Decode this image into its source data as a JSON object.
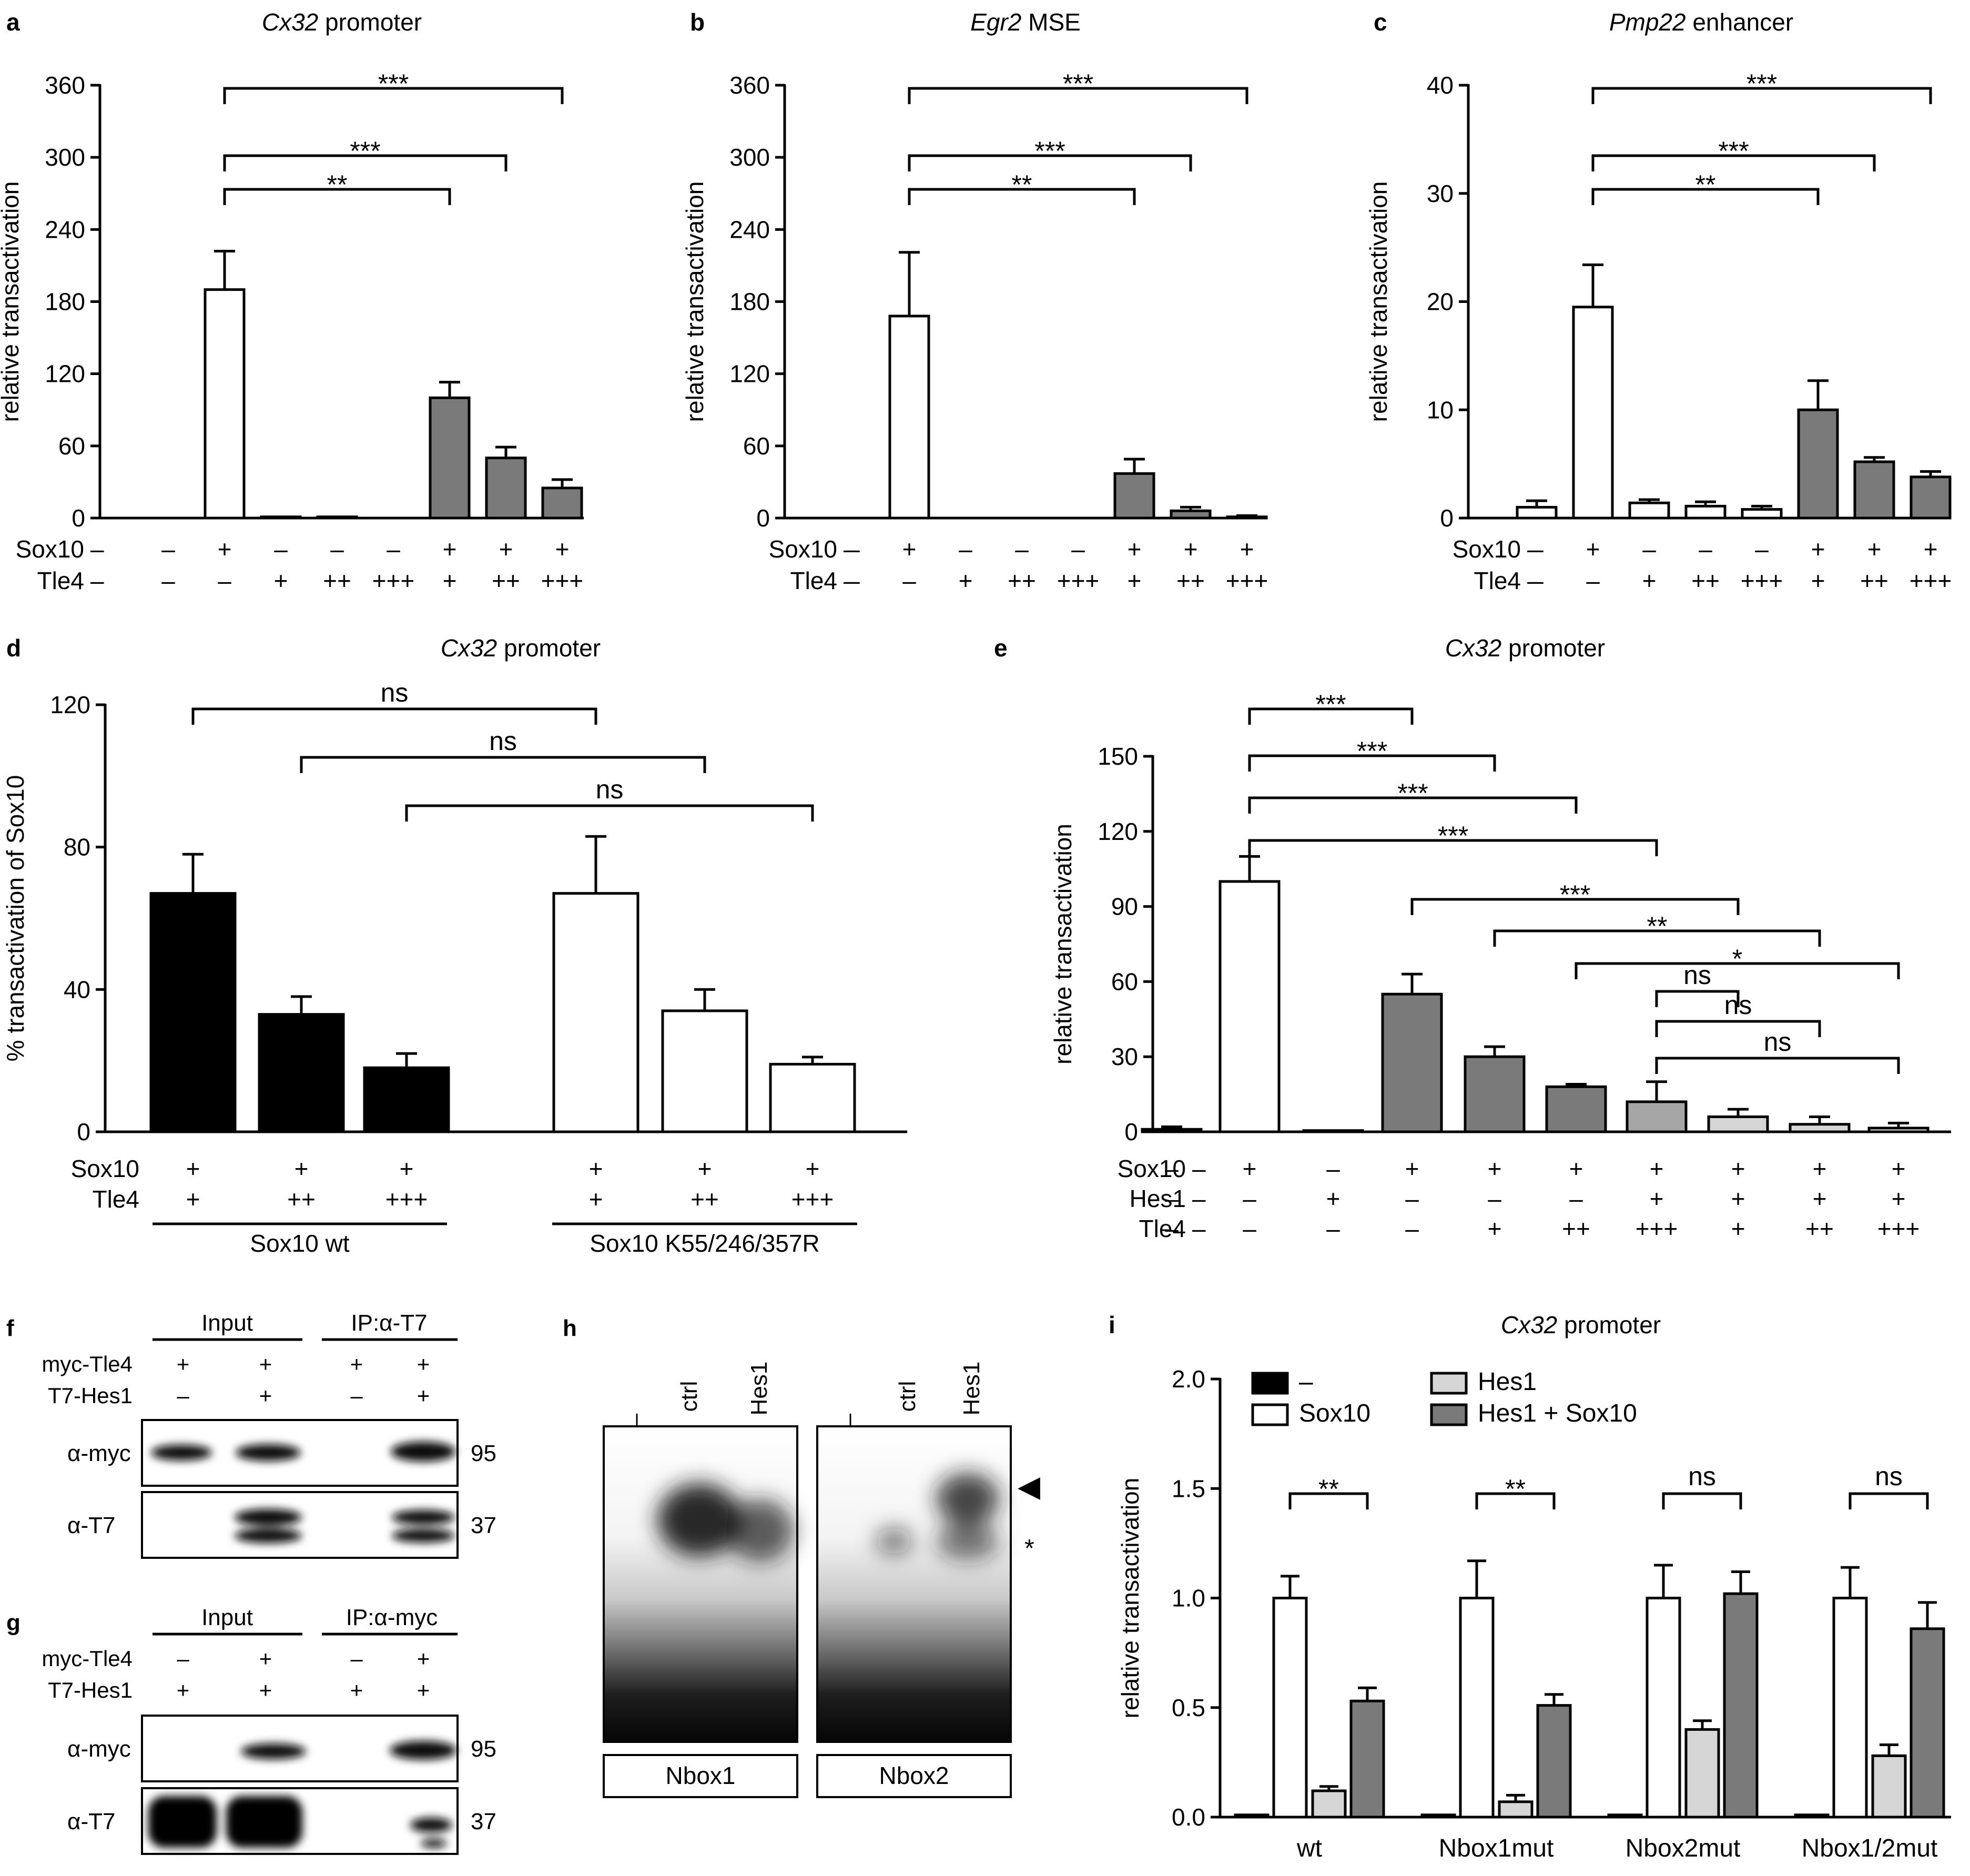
{
  "colors": {
    "white": "#ffffff",
    "dark": "#7a7a7a",
    "light": "#d6d6d6",
    "black": "#000000",
    "medium": "#a6a6a6"
  },
  "chart_data": [
    {
      "id": "a",
      "type": "bar",
      "panel_letter": "a",
      "title": "Cx32",
      "title_suffix": " promoter",
      "ylabel": "relative transactivation",
      "ylim": [
        0,
        360
      ],
      "yticks": [
        0,
        60,
        120,
        180,
        240,
        300,
        360
      ],
      "row_labels": [
        "Sox10",
        "Tle4"
      ],
      "dash": "–",
      "rows": [
        [
          "–",
          "+",
          "–",
          "–",
          "–",
          "+",
          "+",
          "+"
        ],
        [
          "–",
          "–",
          "+",
          "++",
          "+++",
          "+",
          "++",
          "+++"
        ]
      ],
      "values": [
        0,
        190,
        1,
        1,
        0,
        100,
        50,
        25
      ],
      "errors": [
        0,
        32,
        0,
        0,
        0,
        13,
        9,
        7
      ],
      "fills": [
        "white",
        "white",
        "white",
        "white",
        "white",
        "dark",
        "dark",
        "dark"
      ],
      "brackets": [
        {
          "from": 1,
          "to": 5,
          "label": "**"
        },
        {
          "from": 1,
          "to": 6,
          "label": "***"
        },
        {
          "from": 1,
          "to": 7,
          "label": "***"
        }
      ]
    },
    {
      "id": "b",
      "type": "bar",
      "panel_letter": "b",
      "title": "Egr2",
      "title_suffix": " MSE",
      "ylabel": "relative transactivation",
      "ylim": [
        0,
        360
      ],
      "yticks": [
        0,
        60,
        120,
        180,
        240,
        300,
        360
      ],
      "row_labels": [
        "Sox10",
        "Tle4"
      ],
      "dash": "–",
      "rows": [
        [
          "–",
          "+",
          "–",
          "–",
          "–",
          "+",
          "+",
          "+"
        ],
        [
          "–",
          "–",
          "+",
          "++",
          "+++",
          "+",
          "++",
          "+++"
        ]
      ],
      "values": [
        0,
        168,
        0,
        0,
        0,
        37,
        6,
        1
      ],
      "errors": [
        0,
        53,
        0,
        0,
        0,
        12,
        3,
        1
      ],
      "fills": [
        "white",
        "white",
        "white",
        "white",
        "white",
        "dark",
        "dark",
        "dark"
      ],
      "brackets": [
        {
          "from": 1,
          "to": 5,
          "label": "**"
        },
        {
          "from": 1,
          "to": 6,
          "label": "***"
        },
        {
          "from": 1,
          "to": 7,
          "label": "***"
        }
      ]
    },
    {
      "id": "c",
      "type": "bar",
      "panel_letter": "c",
      "title": "Pmp22",
      "title_suffix": " enhancer",
      "ylabel": "relative transactivation",
      "ylim": [
        0,
        40
      ],
      "yticks": [
        0,
        10,
        20,
        30,
        40
      ],
      "row_labels": [
        "Sox10",
        "Tle4"
      ],
      "dash": "–",
      "rows": [
        [
          "–",
          "+",
          "–",
          "–",
          "–",
          "+",
          "+",
          "+"
        ],
        [
          "–",
          "–",
          "+",
          "++",
          "+++",
          "+",
          "++",
          "+++"
        ]
      ],
      "values": [
        1.0,
        19.5,
        1.4,
        1.1,
        0.8,
        10.0,
        5.2,
        3.8
      ],
      "errors": [
        0.6,
        3.9,
        0.3,
        0.4,
        0.3,
        2.7,
        0.4,
        0.5
      ],
      "fills": [
        "white",
        "white",
        "white",
        "white",
        "white",
        "dark",
        "dark",
        "dark"
      ],
      "brackets": [
        {
          "from": 1,
          "to": 5,
          "label": "**"
        },
        {
          "from": 1,
          "to": 6,
          "label": "***"
        },
        {
          "from": 1,
          "to": 7,
          "label": "***"
        }
      ]
    },
    {
      "id": "d",
      "type": "bar",
      "panel_letter": "d",
      "title": "Cx32",
      "title_suffix": " promoter",
      "ylabel": "% transactivation of Sox10",
      "ylim": [
        0,
        120
      ],
      "yticks": [
        0,
        40,
        80,
        120
      ],
      "row_labels": [
        "Sox10",
        "Tle4"
      ],
      "rows": [
        [
          "+",
          "+",
          "+",
          "+",
          "+",
          "+"
        ],
        [
          "+",
          "++",
          "+++",
          "+",
          "++",
          "+++"
        ]
      ],
      "values": [
        67,
        33,
        18,
        67,
        34,
        19
      ],
      "errors": [
        11,
        5,
        4,
        16,
        6,
        2
      ],
      "fills": [
        "black",
        "black",
        "black",
        "white",
        "white",
        "white"
      ],
      "group_labels": [
        "Sox10 wt",
        "Sox10 K55/246/357R"
      ],
      "brackets": [
        {
          "from": 0,
          "to": 3,
          "label": "ns"
        },
        {
          "from": 1,
          "to": 4,
          "label": "ns"
        },
        {
          "from": 2,
          "to": 5,
          "label": "ns"
        }
      ]
    },
    {
      "id": "e",
      "type": "bar",
      "panel_letter": "e",
      "title": "Cx32",
      "title_suffix": " promoter",
      "ylabel": "relative transactivation",
      "ylim": [
        0,
        150
      ],
      "yticks": [
        0,
        30,
        60,
        90,
        120,
        150
      ],
      "row_labels": [
        "Sox10",
        "Hes1",
        "Tle4"
      ],
      "dash": "–",
      "rows": [
        [
          "–",
          "+",
          "–",
          "+",
          "+",
          "+",
          "+",
          "+",
          "+",
          "+"
        ],
        [
          "–",
          "–",
          "+",
          "–",
          "–",
          "–",
          "+",
          "+",
          "+",
          "+"
        ],
        [
          "–",
          "–",
          "–",
          "–",
          "+",
          "++",
          "+++",
          "+",
          "++",
          "+++"
        ]
      ],
      "values": [
        1,
        100,
        0.5,
        55,
        30,
        18,
        12,
        6,
        3,
        1.5
      ],
      "errors": [
        1,
        10,
        0,
        8,
        4,
        1,
        8,
        3,
        3,
        2
      ],
      "fills": [
        "white",
        "white",
        "white",
        "dark",
        "dark",
        "dark",
        "medium",
        "light",
        "light",
        "light"
      ],
      "brackets": [
        {
          "from": 1,
          "to": 3,
          "label": "***"
        },
        {
          "from": 1,
          "to": 4,
          "label": "***"
        },
        {
          "from": 1,
          "to": 5,
          "label": "***"
        },
        {
          "from": 1,
          "to": 6,
          "label": "***"
        },
        {
          "from": 3,
          "to": 7,
          "label": "***"
        },
        {
          "from": 4,
          "to": 8,
          "label": "**"
        },
        {
          "from": 5,
          "to": 9,
          "label": "*"
        },
        {
          "from": 6,
          "to": 7,
          "label": "ns"
        },
        {
          "from": 6,
          "to": 8,
          "label": "ns"
        },
        {
          "from": 6,
          "to": 9,
          "label": "ns"
        }
      ]
    },
    {
      "id": "i",
      "type": "bar",
      "panel_letter": "i",
      "title": "Cx32",
      "title_suffix": " promoter",
      "ylabel": "relative transactivation",
      "ylim": [
        0,
        2.0
      ],
      "yticks": [
        0.0,
        0.5,
        1.0,
        1.5,
        2.0
      ],
      "categories": [
        "wt",
        "Nbox1mut",
        "Nbox2mut",
        "Nbox1/2mut"
      ],
      "series": [
        {
          "name": "–",
          "fill": "black",
          "values": [
            0.01,
            0.01,
            0.01,
            0.01
          ],
          "errors": [
            0,
            0,
            0,
            0
          ]
        },
        {
          "name": "Sox10",
          "fill": "white",
          "values": [
            1.0,
            1.0,
            1.0,
            1.0
          ],
          "errors": [
            0.1,
            0.17,
            0.15,
            0.14
          ]
        },
        {
          "name": "Hes1",
          "fill": "light",
          "values": [
            0.12,
            0.07,
            0.4,
            0.28
          ],
          "errors": [
            0.02,
            0.03,
            0.04,
            0.05
          ]
        },
        {
          "name": "Hes1 + Sox10",
          "fill": "dark",
          "values": [
            0.53,
            0.51,
            1.02,
            0.86
          ],
          "errors": [
            0.06,
            0.05,
            0.1,
            0.12
          ]
        }
      ],
      "brackets_labels": [
        "**",
        "**",
        "ns",
        "ns"
      ]
    }
  ],
  "panels": {
    "f": {
      "letter": "f",
      "section_labels": [
        "Input",
        "IP:α-T7"
      ],
      "row_labels": [
        "myc-Tle4",
        "T7-Hes1"
      ],
      "rows": [
        [
          "+",
          "+",
          "+",
          "+"
        ],
        [
          "–",
          "+",
          "–",
          "+"
        ]
      ],
      "blots": [
        {
          "label": "α-myc",
          "mw": "95"
        },
        {
          "label": "α-T7",
          "mw": "37"
        }
      ]
    },
    "g": {
      "letter": "g",
      "section_labels": [
        "Input",
        "IP:α-myc"
      ],
      "row_labels": [
        "myc-Tle4",
        "T7-Hes1"
      ],
      "rows": [
        [
          "–",
          "+",
          "–",
          "+"
        ],
        [
          "+",
          "+",
          "+",
          "+"
        ]
      ],
      "blots": [
        {
          "label": "α-myc",
          "mw": "95"
        },
        {
          "label": "α-T7",
          "mw": "37"
        }
      ]
    },
    "h": {
      "letter": "h",
      "lane_labels": [
        "–",
        "ctrl",
        "Hes1"
      ],
      "gel_labels": [
        "Nbox1",
        "Nbox2"
      ],
      "arrow": "◀",
      "star": "*"
    }
  }
}
